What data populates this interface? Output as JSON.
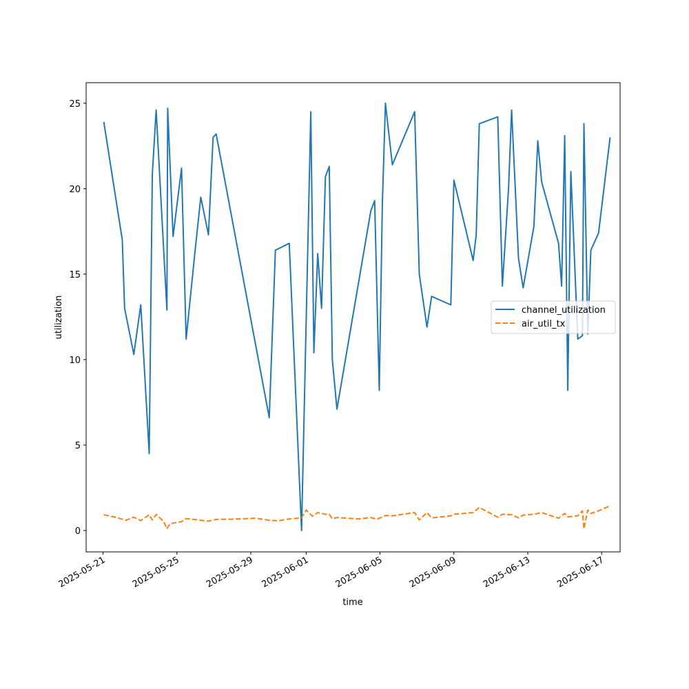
{
  "chart_data": {
    "type": "line",
    "title": "",
    "xlabel": "time",
    "ylabel": "utilization",
    "x_type": "date",
    "xlim": [
      "2025-05-20T02:00",
      "2025-06-18T00:00"
    ],
    "ylim": [
      -1.25,
      26.2
    ],
    "grid": false,
    "legend_position": "center-right",
    "x_ticks": [
      {
        "value": "2025-05-21",
        "label": "2025-05-21"
      },
      {
        "value": "2025-05-25",
        "label": "2025-05-25"
      },
      {
        "value": "2025-05-29",
        "label": "2025-05-29"
      },
      {
        "value": "2025-06-01",
        "label": "2025-06-01"
      },
      {
        "value": "2025-06-05",
        "label": "2025-06-05"
      },
      {
        "value": "2025-06-09",
        "label": "2025-06-09"
      },
      {
        "value": "2025-06-13",
        "label": "2025-06-13"
      },
      {
        "value": "2025-06-17",
        "label": "2025-06-17"
      }
    ],
    "y_ticks": [
      {
        "value": 0,
        "label": "0"
      },
      {
        "value": 5,
        "label": "5"
      },
      {
        "value": 10,
        "label": "10"
      },
      {
        "value": 15,
        "label": "15"
      },
      {
        "value": 20,
        "label": "20"
      },
      {
        "value": 25,
        "label": "25"
      }
    ],
    "series": [
      {
        "name": "channel_utilization",
        "color": "#1f77b4",
        "dash": "solid",
        "points": [
          [
            "2025-05-21T01:00",
            23.9
          ],
          [
            "2025-05-22T01:00",
            17.0
          ],
          [
            "2025-05-22T04:00",
            13.0
          ],
          [
            "2025-05-22T16:00",
            10.3
          ],
          [
            "2025-05-23T01:00",
            13.2
          ],
          [
            "2025-05-23T12:00",
            4.5
          ],
          [
            "2025-05-23T16:00",
            20.8
          ],
          [
            "2025-05-23T21:00",
            24.6
          ],
          [
            "2025-05-24T11:00",
            12.9
          ],
          [
            "2025-05-24T12:00",
            24.7
          ],
          [
            "2025-05-24T19:00",
            17.2
          ],
          [
            "2025-05-25T06:00",
            21.2
          ],
          [
            "2025-05-25T12:00",
            11.2
          ],
          [
            "2025-05-25T23:00",
            16.1
          ],
          [
            "2025-05-26T07:00",
            19.5
          ],
          [
            "2025-05-26T17:00",
            17.3
          ],
          [
            "2025-05-26T23:00",
            23.0
          ],
          [
            "2025-05-27T03:00",
            23.2
          ],
          [
            "2025-05-30T00:00",
            6.6
          ],
          [
            "2025-05-30T08:00",
            16.4
          ],
          [
            "2025-05-31T02:00",
            16.8
          ],
          [
            "2025-05-31T18:00",
            0.0
          ],
          [
            "2025-06-01T06:00",
            24.5
          ],
          [
            "2025-06-01T10:00",
            10.4
          ],
          [
            "2025-06-01T15:00",
            16.2
          ],
          [
            "2025-06-01T20:00",
            13.0
          ],
          [
            "2025-06-02T01:00",
            20.7
          ],
          [
            "2025-06-02T06:00",
            21.3
          ],
          [
            "2025-06-02T10:00",
            10.0
          ],
          [
            "2025-06-02T16:00",
            7.1
          ],
          [
            "2025-06-04T12:00",
            18.7
          ],
          [
            "2025-06-04T17:00",
            19.3
          ],
          [
            "2025-06-04T23:00",
            8.2
          ],
          [
            "2025-06-05T03:00",
            19.1
          ],
          [
            "2025-06-05T07:00",
            25.0
          ],
          [
            "2025-06-05T16:00",
            21.4
          ],
          [
            "2025-06-06T21:00",
            24.5
          ],
          [
            "2025-06-07T03:00",
            15.0
          ],
          [
            "2025-06-07T13:00",
            11.9
          ],
          [
            "2025-06-07T19:00",
            13.7
          ],
          [
            "2025-06-08T20:00",
            13.2
          ],
          [
            "2025-06-09T00:00",
            20.5
          ],
          [
            "2025-06-10T01:00",
            15.8
          ],
          [
            "2025-06-10T05:00",
            17.3
          ],
          [
            "2025-06-10T09:00",
            23.8
          ],
          [
            "2025-06-11T09:00",
            24.2
          ],
          [
            "2025-06-11T15:00",
            14.3
          ],
          [
            "2025-06-11T23:00",
            20.0
          ],
          [
            "2025-06-12T03:00",
            24.6
          ],
          [
            "2025-06-12T12:00",
            15.9
          ],
          [
            "2025-06-12T18:00",
            14.2
          ],
          [
            "2025-06-13T08:00",
            17.8
          ],
          [
            "2025-06-13T13:00",
            22.8
          ],
          [
            "2025-06-13T18:00",
            20.4
          ],
          [
            "2025-06-14T16:00",
            16.8
          ],
          [
            "2025-06-14T20:00",
            14.3
          ],
          [
            "2025-06-15T00:00",
            23.1
          ],
          [
            "2025-06-15T04:00",
            8.2
          ],
          [
            "2025-06-15T08:00",
            21.0
          ],
          [
            "2025-06-15T17:00",
            11.2
          ],
          [
            "2025-06-15T23:00",
            11.4
          ],
          [
            "2025-06-16T01:00",
            23.8
          ],
          [
            "2025-06-16T06:00",
            11.5
          ],
          [
            "2025-06-16T10:00",
            16.4
          ],
          [
            "2025-06-16T20:00",
            17.4
          ],
          [
            "2025-06-17T11:00",
            23.0
          ]
        ]
      },
      {
        "name": "air_util_tx",
        "color": "#ff7f0e",
        "dash": "dashed",
        "points": [
          [
            "2025-05-21T01:00",
            0.92
          ],
          [
            "2025-05-21T14:00",
            0.8
          ],
          [
            "2025-05-22T06:00",
            0.6
          ],
          [
            "2025-05-22T16:00",
            0.78
          ],
          [
            "2025-05-23T01:00",
            0.58
          ],
          [
            "2025-05-23T12:00",
            0.92
          ],
          [
            "2025-05-23T16:00",
            0.62
          ],
          [
            "2025-05-23T21:00",
            0.94
          ],
          [
            "2025-05-24T07:00",
            0.52
          ],
          [
            "2025-05-24T11:00",
            0.1
          ],
          [
            "2025-05-24T15:00",
            0.4
          ],
          [
            "2025-05-25T06:00",
            0.52
          ],
          [
            "2025-05-25T12:00",
            0.7
          ],
          [
            "2025-05-26T07:00",
            0.6
          ],
          [
            "2025-05-26T17:00",
            0.55
          ],
          [
            "2025-05-27T03:00",
            0.65
          ],
          [
            "2025-05-27T20:00",
            0.66
          ],
          [
            "2025-05-28T20:00",
            0.7
          ],
          [
            "2025-05-29T06:00",
            0.72
          ],
          [
            "2025-05-30T00:00",
            0.6
          ],
          [
            "2025-05-30T12:00",
            0.57
          ],
          [
            "2025-05-31T02:00",
            0.68
          ],
          [
            "2025-05-31T18:00",
            0.74
          ],
          [
            "2025-06-01T00:00",
            1.2
          ],
          [
            "2025-06-01T08:00",
            0.84
          ],
          [
            "2025-06-01T15:00",
            1.05
          ],
          [
            "2025-06-02T01:00",
            0.95
          ],
          [
            "2025-06-02T06:00",
            0.95
          ],
          [
            "2025-06-02T10:00",
            0.68
          ],
          [
            "2025-06-02T16:00",
            0.76
          ],
          [
            "2025-06-03T20:00",
            0.68
          ],
          [
            "2025-06-04T12:00",
            0.76
          ],
          [
            "2025-06-04T20:00",
            0.66
          ],
          [
            "2025-06-05T03:00",
            0.8
          ],
          [
            "2025-06-05T07:00",
            0.88
          ],
          [
            "2025-06-05T16:00",
            0.86
          ],
          [
            "2025-06-06T21:00",
            1.05
          ],
          [
            "2025-06-07T03:00",
            0.62
          ],
          [
            "2025-06-07T13:00",
            1.05
          ],
          [
            "2025-06-07T19:00",
            0.74
          ],
          [
            "2025-06-08T20:00",
            0.86
          ],
          [
            "2025-06-09T00:00",
            0.95
          ],
          [
            "2025-06-10T01:00",
            1.05
          ],
          [
            "2025-06-10T09:00",
            1.35
          ],
          [
            "2025-06-11T09:00",
            0.78
          ],
          [
            "2025-06-11T15:00",
            0.95
          ],
          [
            "2025-06-12T03:00",
            0.92
          ],
          [
            "2025-06-12T12:00",
            0.74
          ],
          [
            "2025-06-12T18:00",
            0.9
          ],
          [
            "2025-06-13T08:00",
            0.95
          ],
          [
            "2025-06-13T18:00",
            1.05
          ],
          [
            "2025-06-14T16:00",
            0.72
          ],
          [
            "2025-06-15T00:00",
            1.0
          ],
          [
            "2025-06-15T04:00",
            0.8
          ],
          [
            "2025-06-15T17:00",
            0.86
          ],
          [
            "2025-06-15T23:00",
            1.15
          ],
          [
            "2025-06-16T01:00",
            0.1
          ],
          [
            "2025-06-16T06:00",
            1.2
          ],
          [
            "2025-06-16T10:00",
            1.0
          ],
          [
            "2025-06-16T20:00",
            1.15
          ],
          [
            "2025-06-17T11:00",
            1.45
          ]
        ]
      }
    ]
  }
}
